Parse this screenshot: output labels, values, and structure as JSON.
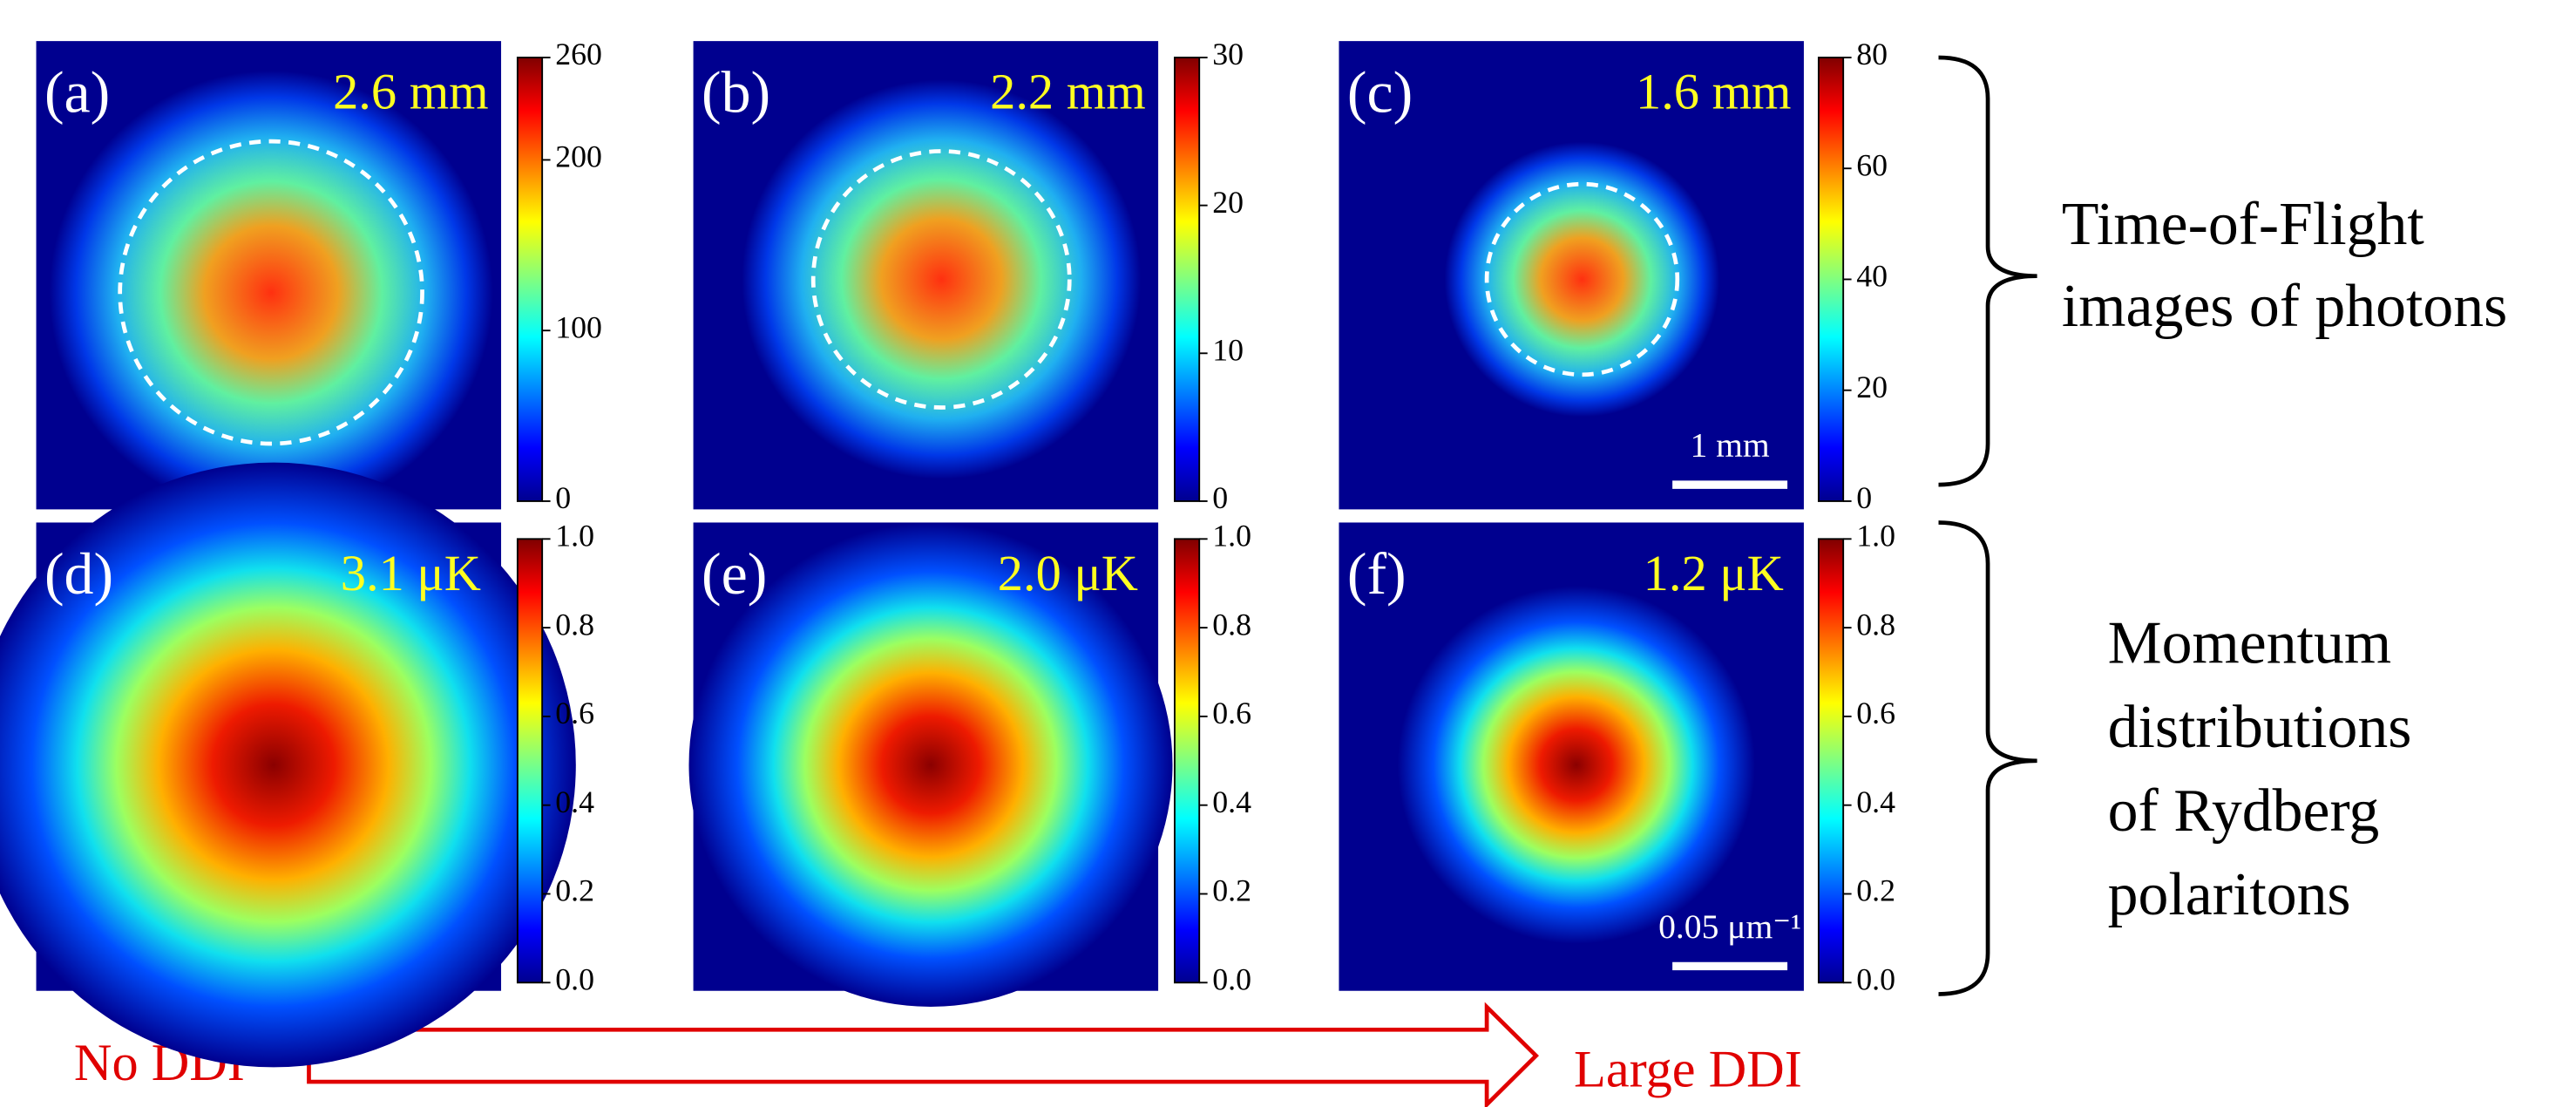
{
  "chart_data": [
    {
      "type": "heatmap",
      "panel_label": "(a)",
      "annotation": "2.6 mm",
      "clim": [
        0,
        260
      ],
      "cticks": [
        0,
        100,
        200,
        260
      ]
    },
    {
      "type": "heatmap",
      "panel_label": "(b)",
      "annotation": "2.2 mm",
      "clim": [
        0,
        30
      ],
      "cticks": [
        0,
        10,
        20,
        30
      ]
    },
    {
      "type": "heatmap",
      "panel_label": "(c)",
      "annotation": "1.6 mm",
      "clim": [
        0,
        80
      ],
      "cticks": [
        0,
        20,
        40,
        60,
        80
      ],
      "scale_bar": "1 mm"
    },
    {
      "type": "heatmap",
      "panel_label": "(d)",
      "annotation": "3.1 μK",
      "clim": [
        0,
        1
      ],
      "cticks": [
        {
          "value": 0,
          "label": "0.0"
        },
        {
          "value": 0.2,
          "label": "0.2"
        },
        {
          "value": 0.4,
          "label": "0.4"
        },
        {
          "value": 0.6,
          "label": "0.6"
        },
        {
          "value": 0.8,
          "label": "0.8"
        },
        {
          "value": 1,
          "label": "1.0"
        }
      ]
    },
    {
      "type": "heatmap",
      "panel_label": "(e)",
      "annotation": "2.0 μK",
      "clim": [
        0,
        1
      ],
      "cticks": [
        {
          "value": 0,
          "label": "0.0"
        },
        {
          "value": 0.2,
          "label": "0.2"
        },
        {
          "value": 0.4,
          "label": "0.4"
        },
        {
          "value": 0.6,
          "label": "0.6"
        },
        {
          "value": 0.8,
          "label": "0.8"
        },
        {
          "value": 1,
          "label": "1.0"
        }
      ]
    },
    {
      "type": "heatmap",
      "panel_label": "(f)",
      "annotation": "1.2 μK",
      "clim": [
        0,
        1
      ],
      "cticks": [
        {
          "value": 0,
          "label": "0.0"
        },
        {
          "value": 0.2,
          "label": "0.2"
        },
        {
          "value": 0.4,
          "label": "0.4"
        },
        {
          "value": 0.6,
          "label": "0.6"
        },
        {
          "value": 0.8,
          "label": "0.8"
        },
        {
          "value": 1,
          "label": "1.0"
        }
      ],
      "scale_bar": "0.05 μm⁻¹"
    }
  ],
  "group_labels": [
    [
      "Time-of-Flight",
      "images of photons"
    ],
    [
      "Momentum",
      "distributions",
      "of Rydberg",
      "polaritons"
    ]
  ],
  "arrow": {
    "start": "No DDI",
    "end": "Large DDI"
  }
}
